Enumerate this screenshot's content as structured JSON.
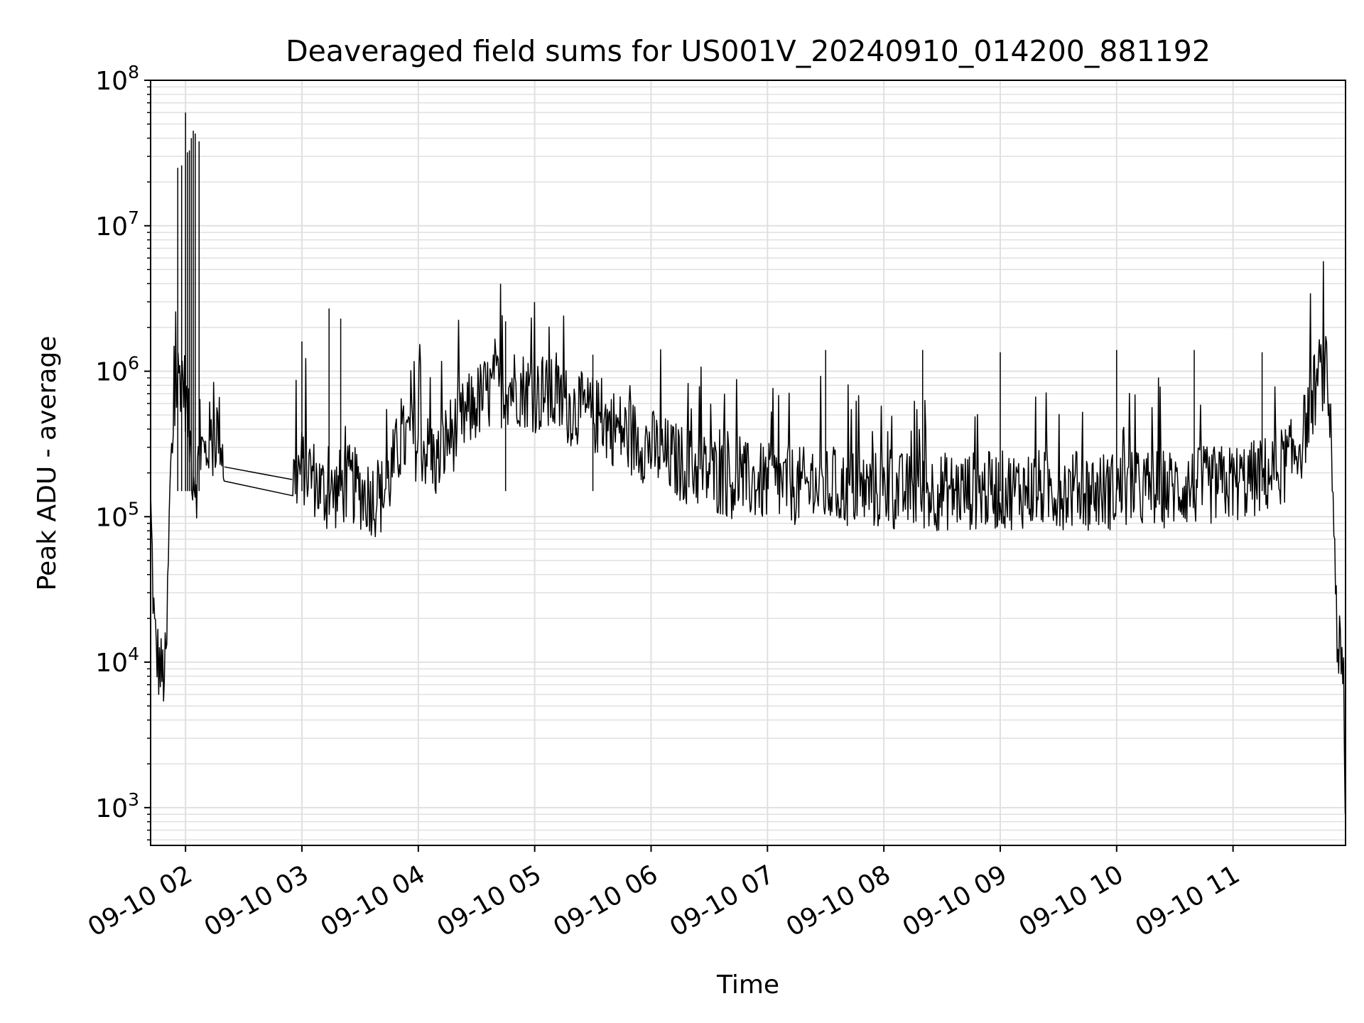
{
  "chart_data": {
    "type": "line",
    "title": "Deaveraged field sums for US001V_20240910_014200_881192",
    "xlabel": "Time",
    "ylabel": "Peak ADU - average",
    "x_scale": "time",
    "y_scale": "log",
    "xlim": [
      "2024-09-10 01:42",
      "2024-09-10 11:58"
    ],
    "ylim": [
      550,
      100000000
    ],
    "grid": true,
    "x_ticks": [
      "09-10 02",
      "09-10 03",
      "09-10 04",
      "09-10 05",
      "09-10 06",
      "09-10 07",
      "09-10 08",
      "09-10 09",
      "09-10 10",
      "09-10 11"
    ],
    "y_ticks": [
      1000,
      10000,
      100000,
      1000000,
      10000000,
      100000000
    ],
    "y_tick_labels": [
      {
        "base": "10",
        "exp": "3"
      },
      {
        "base": "10",
        "exp": "4"
      },
      {
        "base": "10",
        "exp": "5"
      },
      {
        "base": "10",
        "exp": "6"
      },
      {
        "base": "10",
        "exp": "7"
      },
      {
        "base": "10",
        "exp": "8"
      }
    ],
    "line_color": "#000000",
    "grid_color": "#e0e0e0",
    "series": [
      {
        "x": [
          "2024-09-10 01:42",
          "2024-09-10 01:44",
          "2024-09-10 01:46",
          "2024-09-10 01:48",
          "2024-09-10 01:50",
          "2024-09-10 01:52",
          "2024-09-10 01:54",
          "2024-09-10 01:56",
          "2024-09-10 01:58",
          "2024-09-10 02:00",
          "2024-09-10 02:02",
          "2024-09-10 02:04",
          "2024-09-10 02:06",
          "2024-09-10 02:08",
          "2024-09-10 02:10",
          "2024-09-10 02:12",
          "2024-09-10 02:14",
          "2024-09-10 02:16",
          "2024-09-10 02:18",
          "2024-09-10 02:20",
          "2024-09-10 02:55",
          "2024-09-10 03:00",
          "2024-09-10 03:05",
          "2024-09-10 03:10",
          "2024-09-10 03:15",
          "2024-09-10 03:20",
          "2024-09-10 03:25",
          "2024-09-10 03:30",
          "2024-09-10 03:35",
          "2024-09-10 03:40",
          "2024-09-10 03:45",
          "2024-09-10 03:50",
          "2024-09-10 03:55",
          "2024-09-10 04:00",
          "2024-09-10 04:05",
          "2024-09-10 04:10",
          "2024-09-10 04:15",
          "2024-09-10 04:20",
          "2024-09-10 04:25",
          "2024-09-10 04:30",
          "2024-09-10 04:35",
          "2024-09-10 04:40",
          "2024-09-10 04:45",
          "2024-09-10 04:50",
          "2024-09-10 04:55",
          "2024-09-10 05:00",
          "2024-09-10 05:10",
          "2024-09-10 05:20",
          "2024-09-10 05:30",
          "2024-09-10 05:40",
          "2024-09-10 05:50",
          "2024-09-10 06:00",
          "2024-09-10 06:10",
          "2024-09-10 06:20",
          "2024-09-10 06:30",
          "2024-09-10 06:40",
          "2024-09-10 06:50",
          "2024-09-10 07:00",
          "2024-09-10 07:20",
          "2024-09-10 07:40",
          "2024-09-10 08:00",
          "2024-09-10 08:20",
          "2024-09-10 08:40",
          "2024-09-10 09:00",
          "2024-09-10 09:20",
          "2024-09-10 09:40",
          "2024-09-10 10:00",
          "2024-09-10 10:20",
          "2024-09-10 10:40",
          "2024-09-10 11:00",
          "2024-09-10 11:10",
          "2024-09-10 11:20",
          "2024-09-10 11:30",
          "2024-09-10 11:36",
          "2024-09-10 11:40",
          "2024-09-10 11:44",
          "2024-09-10 11:46",
          "2024-09-10 11:48",
          "2024-09-10 11:50",
          "2024-09-10 11:52",
          "2024-09-10 11:54",
          "2024-09-10 11:56",
          "2024-09-10 11:58"
        ],
        "values": [
          120000,
          15000,
          10000,
          8000,
          9000,
          150000,
          500000,
          900000,
          1000000,
          700000,
          350000,
          200000,
          180000,
          300000,
          250000,
          350000,
          300000,
          400000,
          380000,
          220000,
          180000,
          220000,
          200000,
          150000,
          140000,
          160000,
          170000,
          150000,
          140000,
          130000,
          180000,
          300000,
          350000,
          320000,
          280000,
          230000,
          350000,
          400000,
          500000,
          600000,
          700000,
          750000,
          780000,
          800000,
          750000,
          700000,
          650000,
          550000,
          500000,
          420000,
          350000,
          300000,
          250000,
          220000,
          200000,
          180000,
          175000,
          170000,
          160000,
          155000,
          150000,
          148000,
          150000,
          152000,
          155000,
          152000,
          150000,
          155000,
          160000,
          170000,
          180000,
          200000,
          250000,
          350000,
          600000,
          900000,
          1000000,
          950000,
          500000,
          100000,
          12000,
          10000,
          800
        ]
      }
    ],
    "spikes": [
      {
        "x": "2024-09-10 01:56",
        "y": 25000000
      },
      {
        "x": "2024-09-10 01:58",
        "y": 26000000
      },
      {
        "x": "2024-09-10 02:00",
        "y": 60000000
      },
      {
        "x": "2024-09-10 02:01",
        "y": 32000000
      },
      {
        "x": "2024-09-10 02:02",
        "y": 33000000
      },
      {
        "x": "2024-09-10 02:03",
        "y": 40000000
      },
      {
        "x": "2024-09-10 02:04",
        "y": 45000000
      },
      {
        "x": "2024-09-10 02:05",
        "y": 43000000
      },
      {
        "x": "2024-09-10 02:07",
        "y": 38000000
      },
      {
        "x": "2024-09-10 03:00",
        "y": 1600000
      },
      {
        "x": "2024-09-10 03:14",
        "y": 2700000
      },
      {
        "x": "2024-09-10 03:20",
        "y": 2300000
      },
      {
        "x": "2024-09-10 04:45",
        "y": 2200000
      },
      {
        "x": "2024-09-10 05:30",
        "y": 1300000
      },
      {
        "x": "2024-09-10 07:30",
        "y": 1400000
      },
      {
        "x": "2024-09-10 08:20",
        "y": 1400000
      },
      {
        "x": "2024-09-10 09:00",
        "y": 1350000
      },
      {
        "x": "2024-09-10 10:00",
        "y": 1400000
      },
      {
        "x": "2024-09-10 10:40",
        "y": 1400000
      },
      {
        "x": "2024-09-10 11:15",
        "y": 1350000
      }
    ]
  }
}
